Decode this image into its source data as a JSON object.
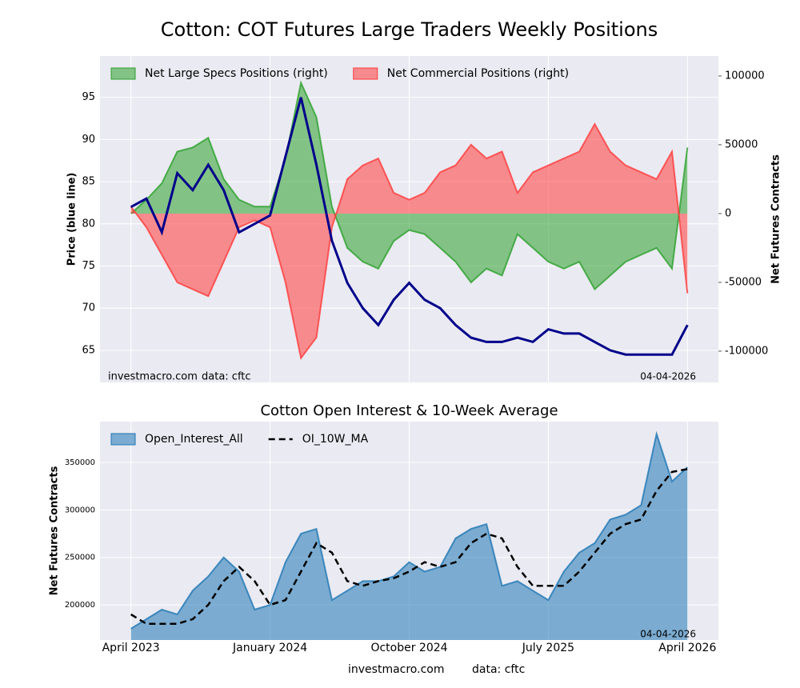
{
  "chart_data": [
    {
      "type": "area",
      "title": "Cotton: COT Futures Large Traders Weekly Positions",
      "ylabel": "Price (blue line)",
      "y2label": "Net Futures Contracts",
      "source": "investmacro.com",
      "data_note": "data: cftc",
      "date": "04-04-2026",
      "grid": true,
      "legend": "upper left",
      "x": [
        "2023-04",
        "2023-05",
        "2023-06",
        "2023-07",
        "2023-08",
        "2023-09",
        "2023-10",
        "2023-11",
        "2023-12",
        "2024-01",
        "2024-02",
        "2024-03",
        "2024-04",
        "2024-05",
        "2024-06",
        "2024-07",
        "2024-08",
        "2024-09",
        "2024-10",
        "2024-11",
        "2024-12",
        "2025-01",
        "2025-02",
        "2025-03",
        "2025-04",
        "2025-05",
        "2025-06",
        "2025-07",
        "2025-08",
        "2025-09",
        "2025-10",
        "2025-11",
        "2025-12",
        "2026-01",
        "2026-02",
        "2026-03",
        "2026-04"
      ],
      "xlim": [
        "2023-02",
        "2026-06"
      ],
      "xticks": [
        "2023-04",
        "2024-01",
        "2024-10",
        "2025-07",
        "2026-04"
      ],
      "ylim": [
        61.2,
        99.9
      ],
      "yticks": [
        65,
        70,
        75,
        80,
        85,
        90,
        95
      ],
      "y2lim": [
        -122700,
        114500
      ],
      "y2ticks": [
        -100000,
        -50000,
        0,
        50000,
        100000
      ],
      "series": [
        {
          "name": "Net Large Specs Positions (right)",
          "kind": "area",
          "axis": "y2",
          "color": "#2ca02c",
          "values": [
            0,
            10000,
            22000,
            45000,
            48000,
            55000,
            25000,
            10000,
            5000,
            5000,
            40000,
            95000,
            70000,
            5000,
            -25000,
            -35000,
            -40000,
            -20000,
            -12000,
            -15000,
            -25000,
            -35000,
            -50000,
            -40000,
            -45000,
            -15000,
            -25000,
            -35000,
            -40000,
            -35000,
            -55000,
            -45000,
            -35000,
            -30000,
            -25000,
            -40000,
            48000
          ]
        },
        {
          "name": "Net Commercial Positions (right)",
          "kind": "area",
          "axis": "y2",
          "color": "#ff3b3b",
          "values": [
            5000,
            -10000,
            -30000,
            -50000,
            -55000,
            -60000,
            -35000,
            -10000,
            -5000,
            -10000,
            -50000,
            -105000,
            -90000,
            -10000,
            25000,
            35000,
            40000,
            15000,
            10000,
            15000,
            30000,
            35000,
            50000,
            40000,
            45000,
            15000,
            30000,
            35000,
            40000,
            45000,
            65000,
            45000,
            35000,
            30000,
            25000,
            45000,
            -58000
          ]
        },
        {
          "kind": "line",
          "axis": "y",
          "color": "#00008b",
          "values": [
            82,
            83,
            79,
            86,
            84,
            87,
            84,
            79,
            80,
            81,
            88,
            95,
            87,
            78,
            73,
            70,
            68,
            71,
            73,
            71,
            70,
            68,
            66.5,
            66,
            66,
            66.5,
            66,
            67.5,
            67,
            67,
            66,
            65,
            64.5,
            64.5,
            64.5,
            64.5,
            68
          ]
        }
      ]
    },
    {
      "type": "area",
      "title": "Cotton Open Interest & 10-Week Average",
      "ylabel": "Net Futures Contracts",
      "source": "investmacro.com",
      "data_note": "data: cftc",
      "date": "04-04-2026",
      "grid": true,
      "legend": "upper left",
      "x": [
        "2023-04",
        "2023-05",
        "2023-06",
        "2023-07",
        "2023-08",
        "2023-09",
        "2023-10",
        "2023-11",
        "2023-12",
        "2024-01",
        "2024-02",
        "2024-03",
        "2024-04",
        "2024-05",
        "2024-06",
        "2024-07",
        "2024-08",
        "2024-09",
        "2024-10",
        "2024-11",
        "2024-12",
        "2025-01",
        "2025-02",
        "2025-03",
        "2025-04",
        "2025-05",
        "2025-06",
        "2025-07",
        "2025-08",
        "2025-09",
        "2025-10",
        "2025-11",
        "2025-12",
        "2026-01",
        "2026-02",
        "2026-03",
        "2026-04"
      ],
      "xlim": [
        "2023-02",
        "2026-06"
      ],
      "xticks": [
        {
          "value": "2023-04",
          "label": "April 2023"
        },
        {
          "value": "2024-01",
          "label": "January 2024"
        },
        {
          "value": "2024-10",
          "label": "October 2024"
        },
        {
          "value": "2025-07",
          "label": "July 2025"
        },
        {
          "value": "2026-04",
          "label": "April 2026"
        }
      ],
      "ylim": [
        163000,
        393000
      ],
      "yticks": [
        200000,
        250000,
        300000,
        350000
      ],
      "series": [
        {
          "name": "Open_Interest_All",
          "kind": "area",
          "axis": "y",
          "color": "#1f77b4",
          "values": [
            175000,
            185000,
            195000,
            190000,
            215000,
            230000,
            250000,
            235000,
            195000,
            200000,
            245000,
            275000,
            280000,
            205000,
            215000,
            225000,
            225000,
            230000,
            245000,
            235000,
            240000,
            270000,
            280000,
            285000,
            220000,
            225000,
            215000,
            205000,
            235000,
            255000,
            265000,
            290000,
            295000,
            305000,
            380000,
            330000,
            345000
          ]
        },
        {
          "name": "OI_10W_MA",
          "kind": "line",
          "linestyle": "dashed",
          "axis": "y",
          "color": "#000000",
          "values": [
            190000,
            180000,
            180000,
            180000,
            185000,
            200000,
            225000,
            240000,
            225000,
            200000,
            205000,
            235000,
            265000,
            255000,
            225000,
            220000,
            225000,
            228000,
            235000,
            245000,
            240000,
            245000,
            265000,
            275000,
            270000,
            240000,
            220000,
            220000,
            220000,
            235000,
            255000,
            275000,
            285000,
            290000,
            320000,
            340000,
            343000
          ]
        }
      ]
    }
  ]
}
